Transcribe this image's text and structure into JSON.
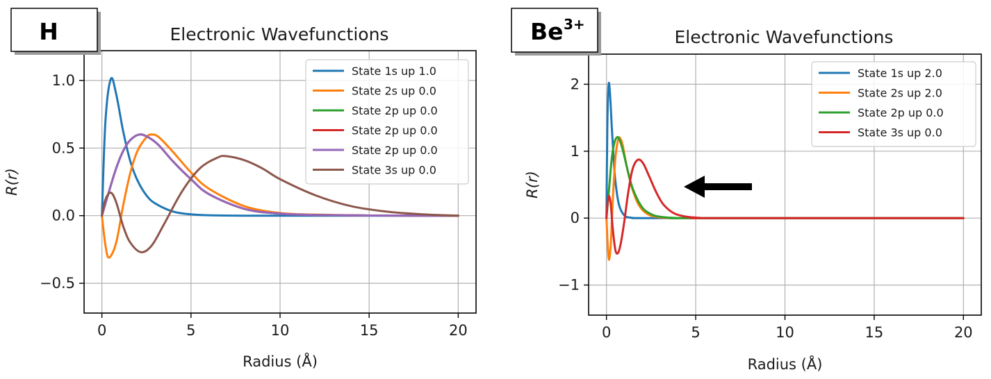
{
  "chart_data": [
    {
      "type": "line",
      "badge": "H",
      "title": "Electronic Wavefunctions",
      "xlabel": "Radius (Å)",
      "ylabel": "R(r)",
      "xlim": [
        -1,
        21
      ],
      "ylim": [
        -0.72,
        1.22
      ],
      "xticks": [
        0,
        5,
        10,
        15,
        20
      ],
      "yticks": [
        -0.5,
        0.0,
        0.5,
        1.0
      ],
      "ytick_labels": [
        "−0.5",
        "0.0",
        "0.5",
        "1.0"
      ],
      "grid": true,
      "legend": "top-right",
      "series": [
        {
          "name": "State 1s up 1.0",
          "color": "#1f77b4",
          "x": [
            0,
            0.2,
            0.5,
            0.8,
            1.2,
            1.6,
            2,
            2.5,
            3,
            4,
            5,
            6,
            8,
            10,
            20
          ],
          "y": [
            0,
            0.7,
            1.01,
            0.9,
            0.62,
            0.4,
            0.26,
            0.15,
            0.09,
            0.03,
            0.01,
            0.003,
            0.0,
            0.0,
            0.0
          ]
        },
        {
          "name": "State 2s up 0.0",
          "color": "#ff7f0e",
          "x": [
            0,
            0.2,
            0.4,
            0.8,
            1.2,
            1.6,
            2.0,
            2.5,
            2.8,
            3.2,
            4,
            5,
            6,
            8,
            10,
            12,
            15,
            20
          ],
          "y": [
            0,
            -0.22,
            -0.31,
            -0.2,
            0.08,
            0.32,
            0.48,
            0.58,
            0.6,
            0.58,
            0.47,
            0.32,
            0.2,
            0.07,
            0.02,
            0.008,
            0.002,
            0.0
          ]
        },
        {
          "name": "State 2p up 0.0",
          "color": "#2ca02c",
          "x": [
            0,
            0.4,
            0.8,
            1.2,
            1.6,
            2.1,
            2.6,
            3.2,
            4,
            5,
            6,
            8,
            10,
            12,
            15,
            20
          ],
          "y": [
            0,
            0.18,
            0.35,
            0.48,
            0.56,
            0.6,
            0.58,
            0.52,
            0.4,
            0.27,
            0.16,
            0.05,
            0.015,
            0.005,
            0.001,
            0.0
          ]
        },
        {
          "name": "State 2p up 0.0",
          "color": "#d62728",
          "x": [
            0,
            0.4,
            0.8,
            1.2,
            1.6,
            2.1,
            2.6,
            3.2,
            4,
            5,
            6,
            8,
            10,
            12,
            15,
            20
          ],
          "y": [
            0,
            0.18,
            0.35,
            0.48,
            0.56,
            0.6,
            0.58,
            0.52,
            0.4,
            0.27,
            0.16,
            0.05,
            0.015,
            0.005,
            0.001,
            0.0
          ]
        },
        {
          "name": "State 2p up 0.0",
          "color": "#9467bd",
          "x": [
            0,
            0.4,
            0.8,
            1.2,
            1.6,
            2.1,
            2.6,
            3.2,
            4,
            5,
            6,
            8,
            10,
            12,
            15,
            20
          ],
          "y": [
            0,
            0.18,
            0.35,
            0.48,
            0.56,
            0.6,
            0.58,
            0.52,
            0.4,
            0.27,
            0.16,
            0.05,
            0.015,
            0.005,
            0.001,
            0.0
          ]
        },
        {
          "name": "State 3s up 0.0",
          "color": "#8c564b",
          "x": [
            0,
            0.2,
            0.5,
            0.8,
            1.2,
            1.6,
            2.2,
            2.8,
            3.5,
            4.5,
            5.5,
            6.5,
            7.0,
            8,
            9,
            10,
            12,
            14,
            16,
            18,
            20
          ],
          "y": [
            0,
            0.12,
            0.17,
            0.1,
            -0.08,
            -0.2,
            -0.27,
            -0.22,
            -0.06,
            0.18,
            0.35,
            0.43,
            0.44,
            0.41,
            0.35,
            0.27,
            0.15,
            0.07,
            0.03,
            0.01,
            0.0
          ]
        }
      ]
    },
    {
      "type": "line",
      "badge": "Be",
      "badge_sup": "3+",
      "title": "Electronic Wavefunctions",
      "xlabel": "Radius (Å)",
      "ylabel": "R(r)",
      "xlim": [
        -1,
        21
      ],
      "ylim": [
        -1.45,
        2.45
      ],
      "xticks": [
        0,
        5,
        10,
        15,
        20
      ],
      "yticks": [
        -1,
        0,
        1,
        2
      ],
      "ytick_labels": [
        "−1",
        "0",
        "1",
        "2"
      ],
      "grid": true,
      "legend": "top-right",
      "arrow": "pointing left",
      "series": [
        {
          "name": "State 1s up 2.0",
          "color": "#1f77b4",
          "x": [
            0,
            0.05,
            0.12,
            0.2,
            0.3,
            0.4,
            0.5,
            0.7,
            1.0,
            1.4,
            2,
            3,
            20
          ],
          "y": [
            0,
            1.4,
            2.0,
            1.85,
            1.35,
            0.9,
            0.55,
            0.2,
            0.04,
            0.005,
            0.0,
            0.0,
            0.0
          ]
        },
        {
          "name": "State 2s up 2.0",
          "color": "#ff7f0e",
          "x": [
            0,
            0.08,
            0.15,
            0.25,
            0.35,
            0.5,
            0.65,
            0.75,
            0.9,
            1.1,
            1.4,
            1.8,
            2.3,
            3,
            4,
            5,
            20
          ],
          "y": [
            0,
            -0.45,
            -0.62,
            -0.35,
            0.25,
            0.9,
            1.17,
            1.2,
            1.1,
            0.82,
            0.48,
            0.2,
            0.06,
            0.01,
            0.0,
            0.0,
            0.0
          ]
        },
        {
          "name": "State 2p up 0.0",
          "color": "#2ca02c",
          "x": [
            0,
            0.15,
            0.3,
            0.45,
            0.6,
            0.75,
            0.95,
            1.2,
            1.5,
            2.0,
            2.5,
            3,
            4,
            5,
            20
          ],
          "y": [
            0,
            0.45,
            0.9,
            1.13,
            1.21,
            1.16,
            0.98,
            0.7,
            0.42,
            0.16,
            0.06,
            0.02,
            0.0,
            0.0,
            0.0
          ]
        },
        {
          "name": "State 3s up 0.0",
          "color": "#d62728",
          "x": [
            0,
            0.07,
            0.15,
            0.25,
            0.35,
            0.5,
            0.65,
            0.8,
            1.0,
            1.2,
            1.45,
            1.75,
            2.05,
            2.4,
            2.8,
            3.2,
            3.8,
            4.5,
            5.2,
            6,
            20
          ],
          "y": [
            0,
            0.25,
            0.33,
            0.18,
            -0.15,
            -0.48,
            -0.52,
            -0.38,
            -0.05,
            0.35,
            0.72,
            0.87,
            0.82,
            0.62,
            0.38,
            0.2,
            0.07,
            0.02,
            0.005,
            0.0,
            0.0
          ]
        }
      ]
    }
  ]
}
